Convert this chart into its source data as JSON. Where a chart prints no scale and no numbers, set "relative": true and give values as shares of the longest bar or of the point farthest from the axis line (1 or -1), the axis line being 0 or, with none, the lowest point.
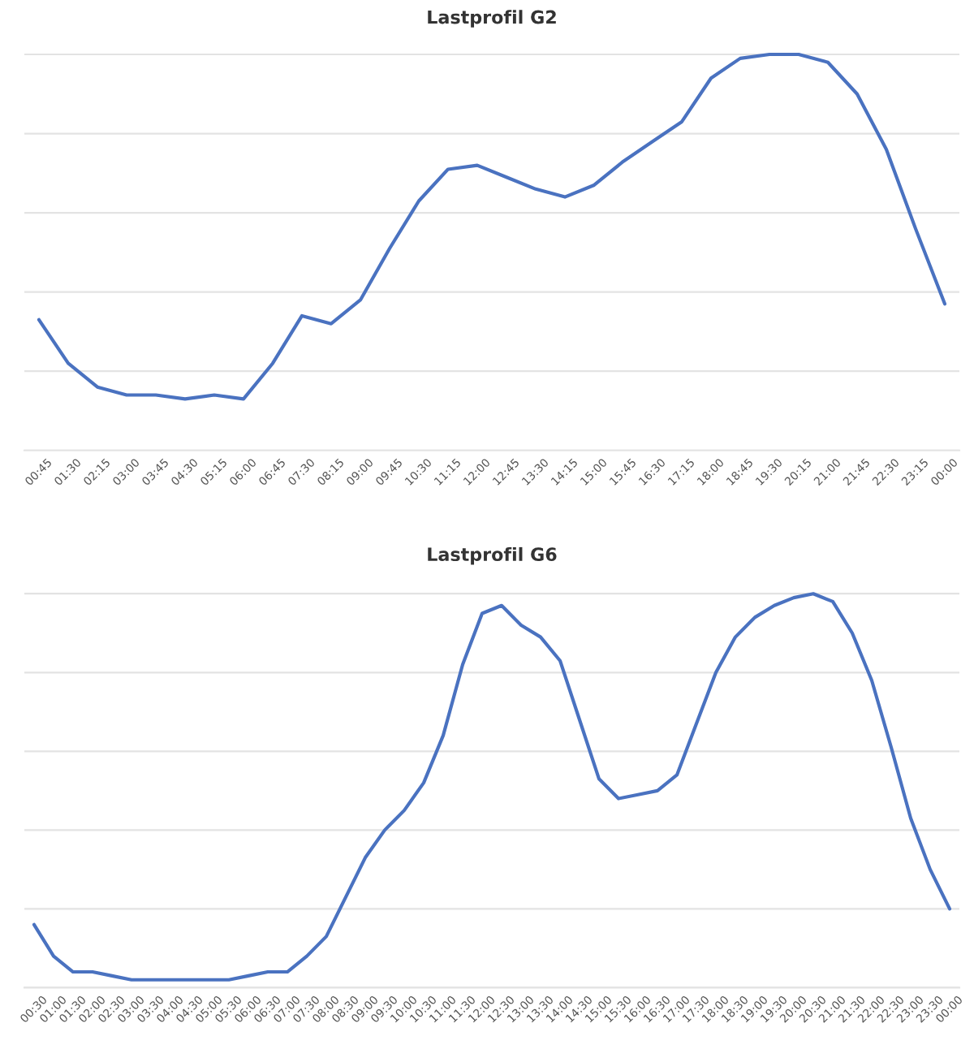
{
  "chart_data": [
    {
      "type": "line",
      "title": "Lastprofil G2",
      "relative": true,
      "grid": "y",
      "legend": false,
      "marker": "none",
      "line_style": "solid",
      "categories": [
        "00:45",
        "01:30",
        "02:15",
        "03:00",
        "03:45",
        "04:30",
        "05:15",
        "06:00",
        "06:45",
        "07:30",
        "08:15",
        "09:00",
        "09:45",
        "10:30",
        "11:15",
        "12:00",
        "12:45",
        "13:30",
        "14:15",
        "15:00",
        "15:45",
        "16:30",
        "17:15",
        "18:00",
        "18:45",
        "19:30",
        "20:15",
        "21:00",
        "21:45",
        "22:30",
        "23:15",
        "00:00"
      ],
      "series": [
        {
          "color": "#4a72c0",
          "values": [
            0.33,
            0.22,
            0.16,
            0.14,
            0.14,
            0.13,
            0.14,
            0.13,
            0.22,
            0.34,
            0.32,
            0.38,
            0.51,
            0.63,
            0.71,
            0.72,
            0.69,
            0.66,
            0.64,
            0.67,
            0.73,
            0.78,
            0.83,
            0.94,
            0.99,
            1.0,
            1.0,
            0.98,
            0.9,
            0.76,
            0.56,
            0.37
          ]
        }
      ]
    },
    {
      "type": "line",
      "title": "Lastprofil G6",
      "relative": true,
      "grid": "y",
      "legend": false,
      "marker": "none",
      "line_style": "solid",
      "categories": [
        "00:30",
        "01:00",
        "01:30",
        "02:00",
        "02:30",
        "03:00",
        "03:30",
        "04:00",
        "04:30",
        "05:00",
        "05:30",
        "06:00",
        "06:30",
        "07:00",
        "07:30",
        "08:00",
        "08:30",
        "09:00",
        "09:30",
        "10:00",
        "10:30",
        "11:00",
        "11:30",
        "12:00",
        "12:30",
        "13:00",
        "13:30",
        "14:00",
        "14:30",
        "15:00",
        "15:30",
        "16:00",
        "16:30",
        "17:00",
        "17:30",
        "18:00",
        "18:30",
        "19:00",
        "19:30",
        "20:00",
        "20:30",
        "21:00",
        "21:30",
        "22:00",
        "22:30",
        "23:00",
        "23:30",
        "00:00"
      ],
      "series": [
        {
          "color": "#4a72c0",
          "values": [
            0.16,
            0.08,
            0.04,
            0.04,
            0.03,
            0.02,
            0.02,
            0.02,
            0.02,
            0.02,
            0.02,
            0.03,
            0.04,
            0.04,
            0.08,
            0.13,
            0.23,
            0.33,
            0.4,
            0.45,
            0.52,
            0.64,
            0.82,
            0.95,
            0.97,
            0.92,
            0.89,
            0.83,
            0.68,
            0.53,
            0.48,
            0.49,
            0.5,
            0.54,
            0.67,
            0.8,
            0.89,
            0.94,
            0.97,
            0.99,
            1.0,
            0.98,
            0.9,
            0.78,
            0.61,
            0.43,
            0.3,
            0.2
          ]
        }
      ]
    }
  ]
}
